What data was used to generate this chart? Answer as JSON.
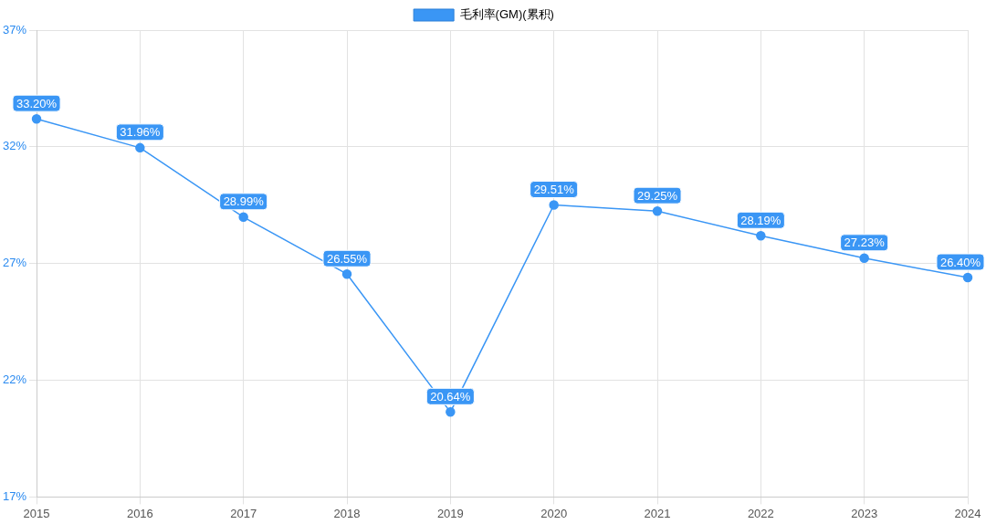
{
  "chart_data": {
    "type": "line",
    "categories": [
      "2015",
      "2016",
      "2017",
      "2018",
      "2019",
      "2020",
      "2021",
      "2022",
      "2023",
      "2024"
    ],
    "series": [
      {
        "name": "毛利率(GM)(累积)",
        "color": "#3a96f5",
        "values": [
          33.2,
          31.96,
          28.99,
          26.55,
          20.64,
          29.51,
          29.25,
          28.19,
          27.23,
          26.4
        ],
        "value_labels": [
          "33.20%",
          "31.96%",
          "28.99%",
          "26.55%",
          "20.64%",
          "29.51%",
          "29.25%",
          "28.19%",
          "27.23%",
          "26.40%"
        ]
      }
    ],
    "ylim": [
      17,
      37
    ],
    "yticks": [
      {
        "value": 17,
        "label": "17%"
      },
      {
        "value": 22,
        "label": "22%"
      },
      {
        "value": 27,
        "label": "27%"
      },
      {
        "value": 32,
        "label": "32%"
      },
      {
        "value": 37,
        "label": "37%"
      }
    ],
    "grid": true,
    "legend": "top",
    "marker": "circle",
    "line_style": "solid"
  }
}
